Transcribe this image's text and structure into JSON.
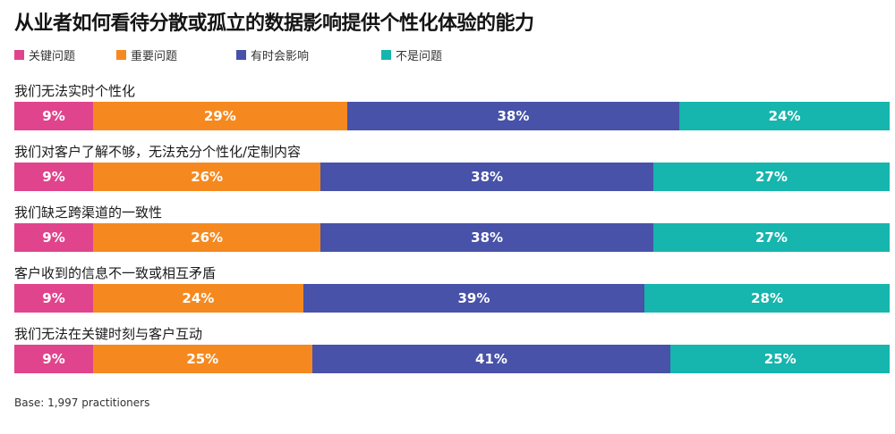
{
  "title": "从业者如何看待分散或孤立的数据影响提供个性化体验的能力",
  "base_note": "Base: 1,997 practitioners",
  "colors": [
    "#e0448c",
    "#f5891f",
    "#4752a8",
    "#16b5ad"
  ],
  "chart_data": {
    "type": "bar",
    "orientation": "horizontal",
    "stacked": true,
    "percent_stacked": true,
    "title": "从业者如何看待分散或孤立的数据影响提供个性化体验的能力",
    "xlabel": "",
    "ylabel": "",
    "xlim": [
      0,
      100
    ],
    "grid": false,
    "legend_position": "top-left",
    "categories": [
      "我们无法实时个性化",
      "我们对客户了解不够，无法充分个性化/定制内容",
      "我们缺乏跨渠道的一致性",
      "客户收到的信息不一致或相互矛盾",
      "我们无法在关键时刻与客户互动"
    ],
    "series": [
      {
        "name": "关键问题",
        "color": "#e0448c",
        "values": [
          9,
          9,
          9,
          9,
          9
        ]
      },
      {
        "name": "重要问题",
        "color": "#f5891f",
        "values": [
          29,
          26,
          26,
          24,
          25
        ]
      },
      {
        "name": "有时会影响",
        "color": "#4752a8",
        "values": [
          38,
          38,
          38,
          39,
          41
        ]
      },
      {
        "name": "不是问题",
        "color": "#16b5ad",
        "values": [
          24,
          27,
          27,
          28,
          25
        ]
      }
    ]
  }
}
